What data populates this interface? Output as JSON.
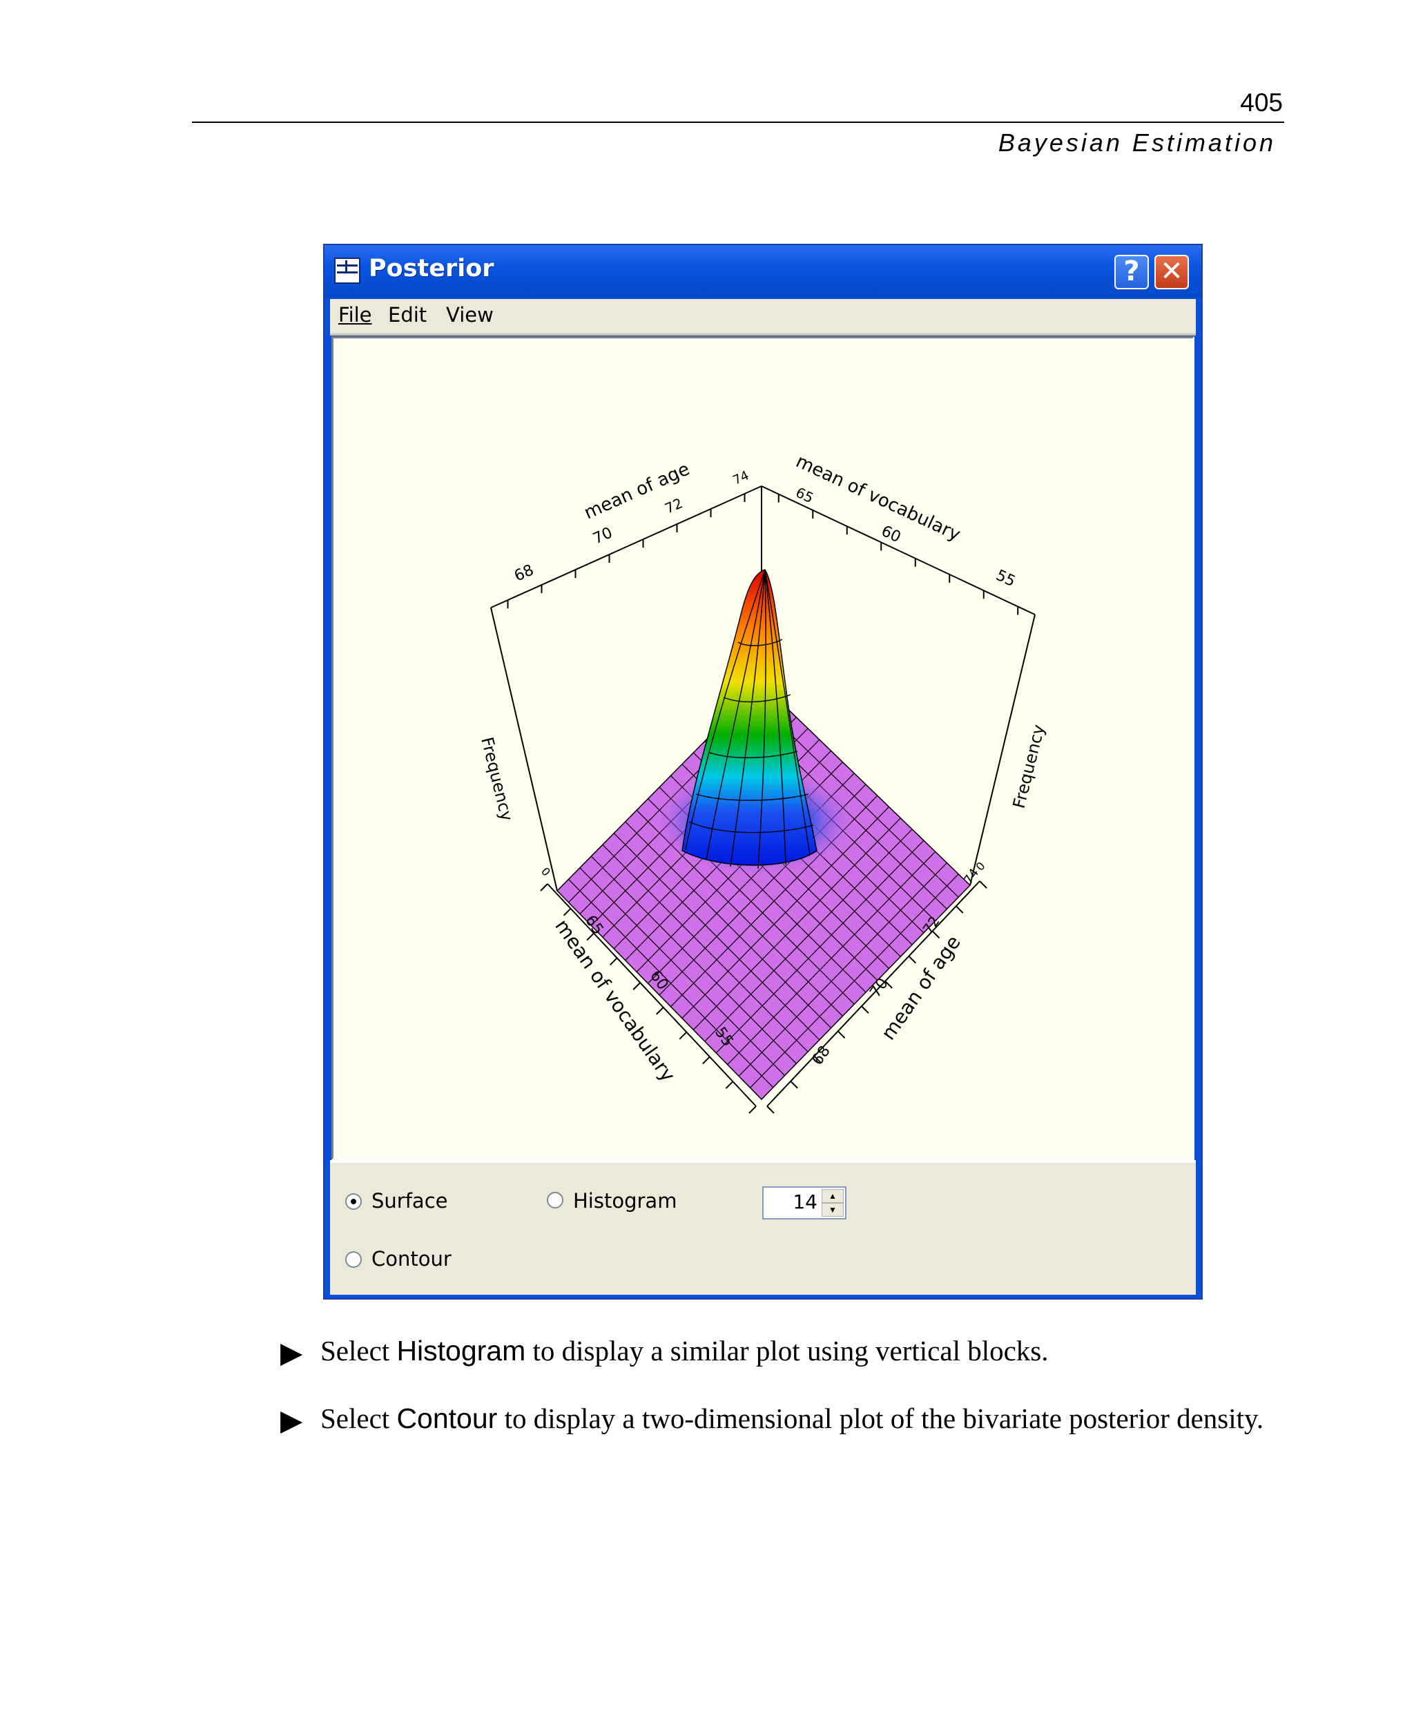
{
  "page": {
    "number": "405",
    "running_head": "Bayesian Estimation"
  },
  "window": {
    "title": "Posterior",
    "help_glyph": "?",
    "close_glyph": "✕",
    "menu": [
      "File",
      "Edit",
      "View"
    ]
  },
  "chart_data": {
    "type": "surface",
    "axes": {
      "age": {
        "label": "mean of age",
        "ticks": [
          "68",
          "70",
          "72",
          "74"
        ]
      },
      "vocabulary": {
        "label": "mean of vocabulary",
        "ticks": [
          "65",
          "60",
          "55"
        ]
      },
      "frequency": {
        "label": "Frequency",
        "ticks": [
          "0"
        ]
      }
    },
    "colormap": [
      "#d070e8",
      "#0018e0",
      "#00c8e8",
      "#00b000",
      "#f0e000",
      "#ff8000",
      "#e00000"
    ],
    "shape": "single peak (bivariate posterior density)"
  },
  "controls": {
    "surface_label": "Surface",
    "histogram_label": "Histogram",
    "contour_label": "Contour",
    "selected": "Surface",
    "spin_value": "14",
    "spin_up": "▲",
    "spin_down": "▼"
  },
  "body": {
    "bullet_glyph": "▶",
    "line1": {
      "pre": "Select ",
      "ui": "Histogram",
      "post": " to display a similar plot using vertical blocks."
    },
    "line2": {
      "pre": "Select ",
      "ui": "Contour",
      "post": " to display a two-dimensional plot of the bivariate posterior density."
    }
  }
}
